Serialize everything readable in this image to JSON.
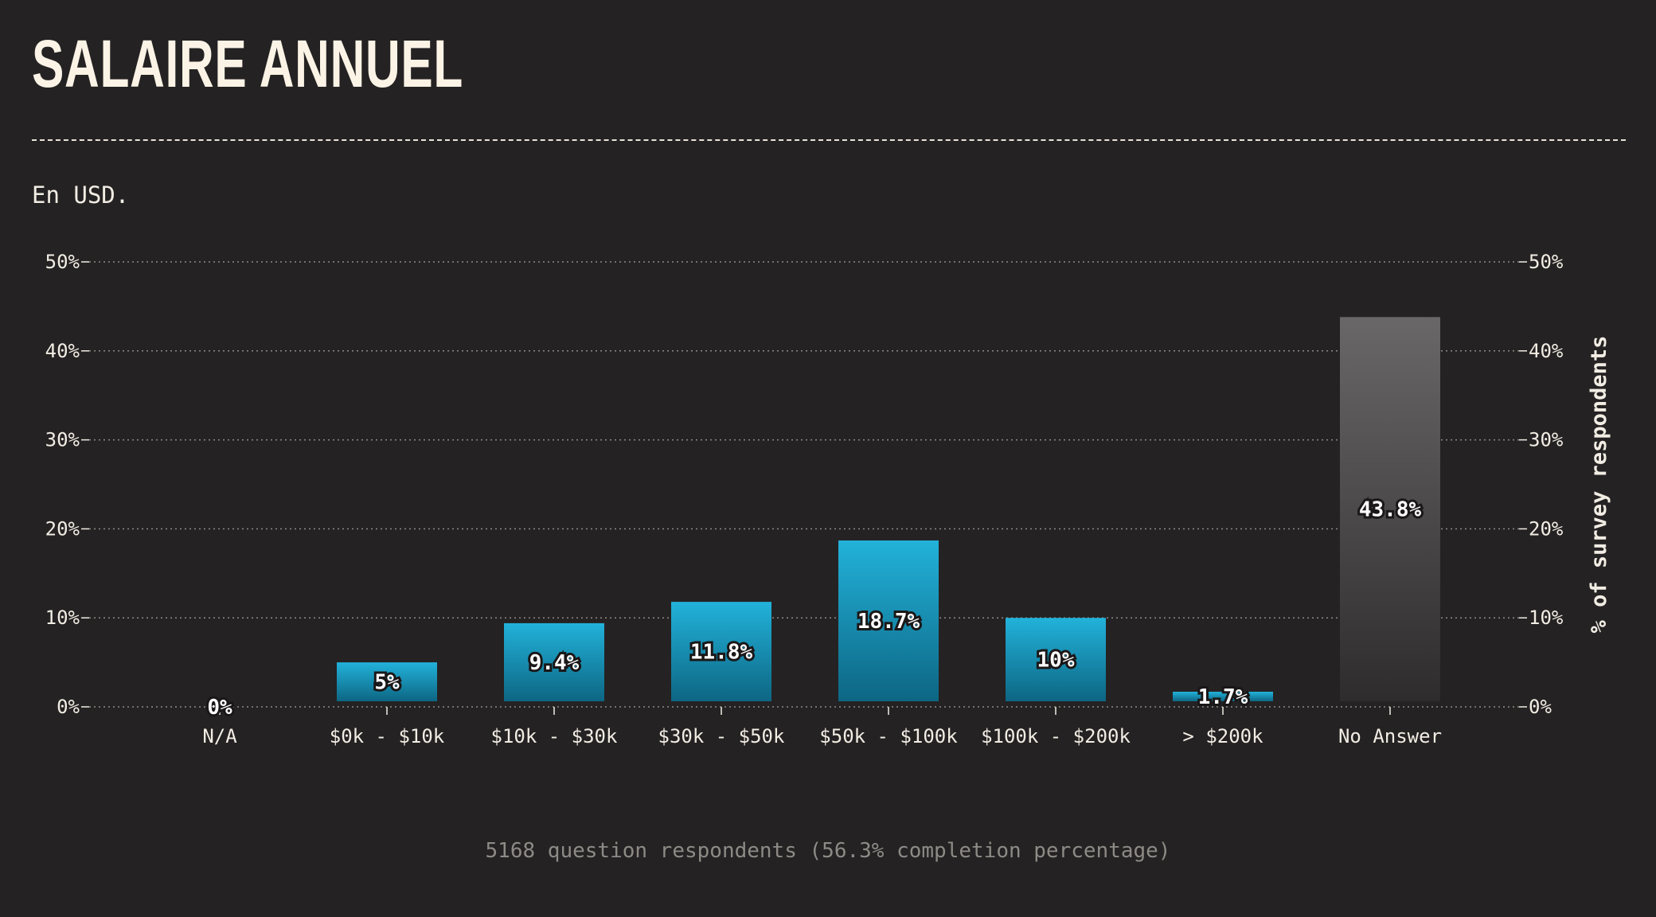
{
  "title": "SALAIRE ANNUEL",
  "subtitle": "En USD.",
  "footer": "5168 question respondents (56.3% completion percentage)",
  "colors": {
    "background": "#252223",
    "bar_top": "#22b2da",
    "bar_bottom": "#0d6683",
    "na_top": "#6a6768",
    "na_bottom": "#2f2c2d",
    "text": "#f2ede4"
  },
  "chart_data": {
    "type": "bar",
    "categories": [
      "N/A",
      "$0k - $10k",
      "$10k - $30k",
      "$30k - $50k",
      "$50k - $100k",
      "$100k - $200k",
      "> $200k",
      "No Answer"
    ],
    "values": [
      0,
      5,
      9.4,
      11.8,
      18.7,
      10,
      1.7,
      43.8
    ],
    "value_labels": [
      "0%",
      "5%",
      "9.4%",
      "11.8%",
      "18.7%",
      "10%",
      "1.7%",
      "43.8%"
    ],
    "ylim": [
      0,
      50
    ],
    "yticks": [
      0,
      10,
      20,
      30,
      40,
      50
    ],
    "ytick_labels": [
      "0%",
      "10%",
      "20%",
      "30%",
      "40%",
      "50%"
    ],
    "ylabel": "% of survey respondents",
    "xlabel": "",
    "grid": true,
    "highlight_last_category": true
  }
}
